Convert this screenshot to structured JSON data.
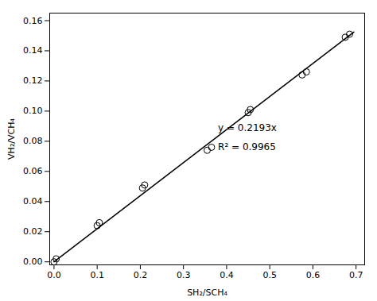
{
  "chart_data": {
    "type": "scatter",
    "xlabel": "SH₂/SCH₄",
    "ylabel": "VH₂/VCH₄",
    "series": [
      {
        "type": "line",
        "color": "#000000",
        "line_style": "solid",
        "x": [
          0.0,
          0.695
        ],
        "values": [
          0.0,
          0.1524135
        ]
      },
      {
        "type": "scatter",
        "color": "#000000",
        "marker": "circle",
        "x": [
          0.0,
          0.005,
          0.1,
          0.105,
          0.205,
          0.21,
          0.355,
          0.365,
          0.45,
          0.455,
          0.575,
          0.585,
          0.675,
          0.685
        ],
        "values": [
          0.0,
          0.002,
          0.024,
          0.026,
          0.049,
          0.051,
          0.074,
          0.076,
          0.099,
          0.101,
          0.124,
          0.126,
          0.149,
          0.151
        ]
      }
    ],
    "annotations": [
      {
        "text": "y = 0.2193x",
        "x": 0.38,
        "y": 0.087
      },
      {
        "text": "R² = 0.9965",
        "x": 0.38,
        "y": 0.074
      }
    ],
    "xlim": [
      -0.01,
      0.72
    ],
    "ylim": [
      -0.002,
      0.165
    ],
    "xticks": [
      {
        "value": 0.0,
        "label": "0.0"
      },
      0.1,
      0.2,
      0.3,
      0.4,
      0.5,
      0.6,
      0.7
    ],
    "yticks": [
      {
        "value": 0.0,
        "label": "0.00"
      },
      0.02,
      0.04,
      0.06,
      0.08,
      {
        "value": 0.1,
        "label": "0.10"
      },
      0.12,
      0.14,
      0.16
    ],
    "grid": false
  }
}
